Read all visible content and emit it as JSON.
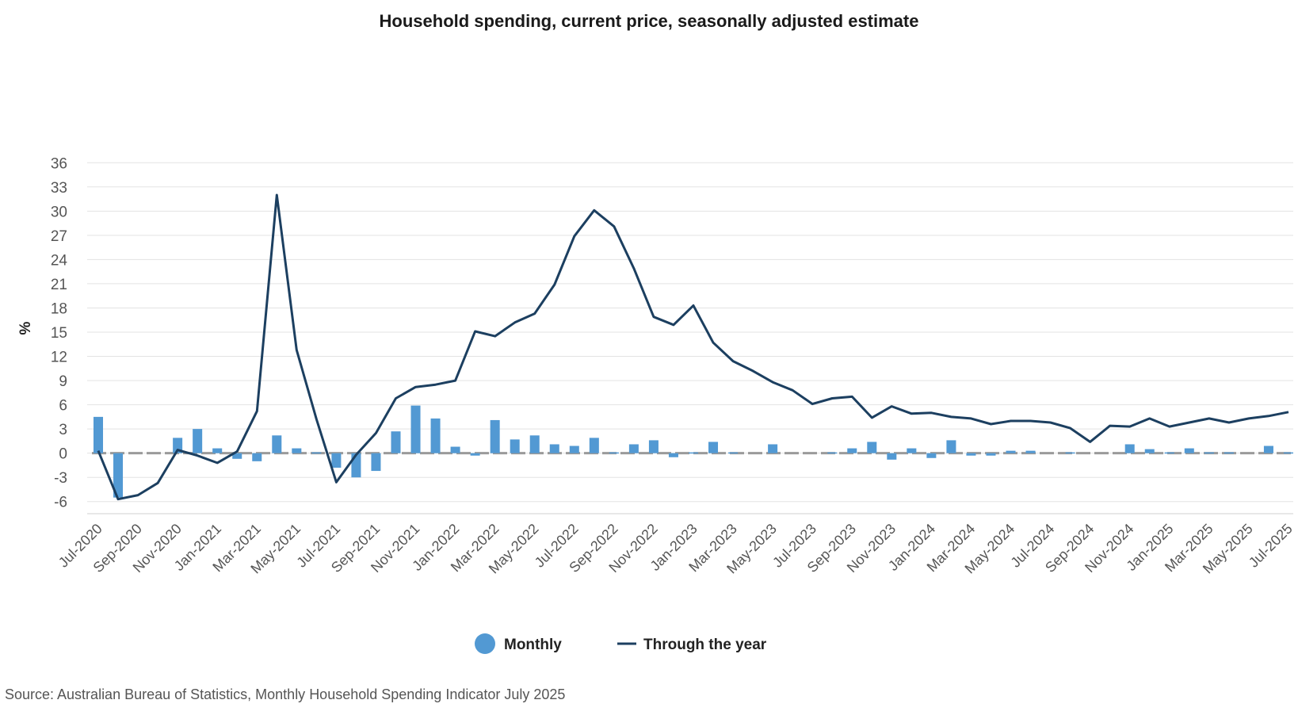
{
  "chart_data": {
    "type": "bar+line",
    "title": "Household spending, current price, seasonally adjusted estimate",
    "ylabel": "%",
    "xlabel": "",
    "ylim": [
      -7.5,
      37.5
    ],
    "yticks": [
      36,
      33,
      30,
      27,
      24,
      21,
      18,
      15,
      12,
      9,
      6,
      3,
      0,
      -3,
      -6
    ],
    "grid": true,
    "legend_position": "bottom",
    "x": [
      "Jul-2020",
      "Aug-2020",
      "Sep-2020",
      "Oct-2020",
      "Nov-2020",
      "Dec-2020",
      "Jan-2021",
      "Feb-2021",
      "Mar-2021",
      "Apr-2021",
      "May-2021",
      "Jun-2021",
      "Jul-2021",
      "Aug-2021",
      "Sep-2021",
      "Oct-2021",
      "Nov-2021",
      "Dec-2021",
      "Jan-2022",
      "Feb-2022",
      "Mar-2022",
      "Apr-2022",
      "May-2022",
      "Jun-2022",
      "Jul-2022",
      "Aug-2022",
      "Sep-2022",
      "Oct-2022",
      "Nov-2022",
      "Dec-2022",
      "Jan-2023",
      "Feb-2023",
      "Mar-2023",
      "Apr-2023",
      "May-2023",
      "Jun-2023",
      "Jul-2023",
      "Aug-2023",
      "Sep-2023",
      "Oct-2023",
      "Nov-2023",
      "Dec-2023",
      "Jan-2024",
      "Feb-2024",
      "Mar-2024",
      "Apr-2024",
      "May-2024",
      "Jun-2024",
      "Jul-2024",
      "Aug-2024",
      "Sep-2024",
      "Oct-2024",
      "Nov-2024",
      "Dec-2024",
      "Jan-2025",
      "Feb-2025",
      "Mar-2025",
      "Apr-2025",
      "May-2025",
      "Jun-2025",
      "Jul-2025"
    ],
    "xticklabels": [
      "Jul-2020",
      "Sep-2020",
      "Nov-2020",
      "Jan-2021",
      "Mar-2021",
      "May-2021",
      "Jul-2021",
      "Sep-2021",
      "Nov-2021",
      "Jan-2022",
      "Mar-2022",
      "May-2022",
      "Jul-2022",
      "Sep-2022",
      "Nov-2022",
      "Jan-2023",
      "Mar-2023",
      "May-2023",
      "Jul-2023",
      "Sep-2023",
      "Nov-2023",
      "Jan-2024",
      "Mar-2024",
      "May-2024",
      "Jul-2024",
      "Sep-2024",
      "Nov-2024",
      "Jan-2025",
      "Mar-2025",
      "May-2025",
      "Jul-2025"
    ],
    "series": [
      {
        "name": "Monthly",
        "type": "bar",
        "color": "#5299d3",
        "values": [
          4.5,
          -5.5,
          0.0,
          0.0,
          1.9,
          3.0,
          0.6,
          -0.7,
          -1.0,
          2.2,
          0.6,
          0.1,
          -1.8,
          -3.0,
          -2.2,
          2.7,
          5.9,
          4.3,
          0.8,
          -0.3,
          4.1,
          1.7,
          2.2,
          1.1,
          0.9,
          1.9,
          0.1,
          1.1,
          1.6,
          -0.5,
          0.1,
          1.4,
          0.1,
          0.0,
          1.1,
          0.0,
          0.0,
          0.1,
          0.6,
          1.4,
          -0.8,
          0.6,
          -0.6,
          1.6,
          -0.3,
          -0.3,
          0.3,
          0.3,
          0.0,
          0.1,
          0.0,
          0.0,
          1.1,
          0.5,
          0.1,
          0.6,
          0.1,
          0.1,
          0.0,
          0.9,
          0.1
        ]
      },
      {
        "name": "Through the year",
        "type": "line",
        "color": "#1c3f60",
        "values": [
          0.3,
          -5.7,
          -5.2,
          -3.7,
          0.4,
          -0.3,
          -1.2,
          0.2,
          5.2,
          32.0,
          12.8,
          4.2,
          -3.6,
          -0.2,
          2.5,
          6.8,
          8.2,
          8.5,
          9.0,
          15.1,
          14.5,
          16.2,
          17.3,
          20.9,
          26.9,
          30.1,
          28.1,
          22.9,
          16.9,
          15.9,
          18.3,
          13.7,
          11.4,
          10.2,
          8.8,
          7.8,
          6.1,
          6.8,
          7.0,
          4.4,
          5.8,
          4.9,
          5.0,
          4.5,
          4.3,
          3.6,
          4.0,
          4.0,
          3.8,
          3.1,
          1.4,
          3.4,
          3.3,
          4.3,
          3.3,
          3.8,
          4.3,
          3.8,
          4.3,
          4.6,
          5.1
        ]
      }
    ],
    "legend": [
      "Monthly",
      "Through the year"
    ],
    "source": "Source: Australian Bureau of Statistics, Monthly Household Spending Indicator July 2025"
  }
}
